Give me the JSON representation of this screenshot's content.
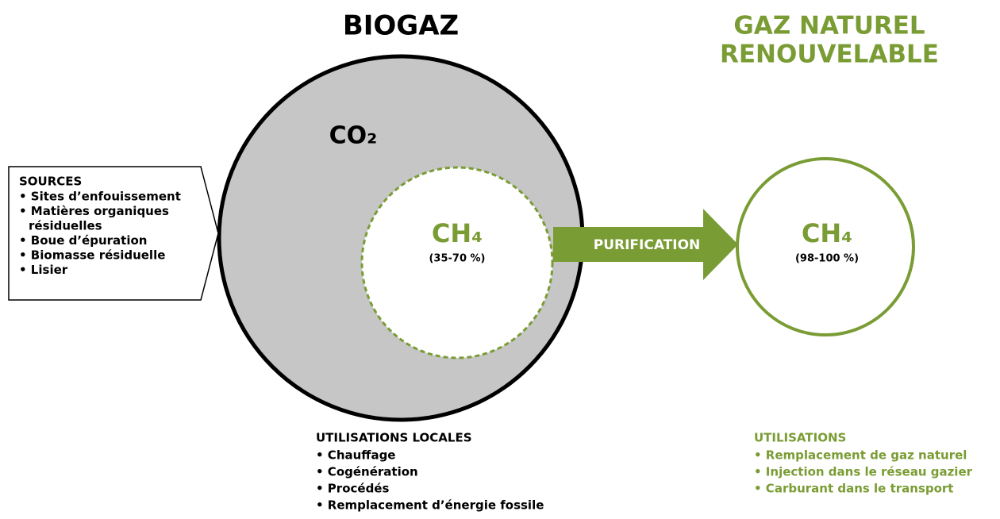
{
  "biogas": {
    "title": "BIOGAZ",
    "co2": "CO₂",
    "ch4": "CH₄",
    "ch4_range": "(35-70 %)"
  },
  "sources": {
    "title": "SOURCES",
    "items": [
      "• Sites d’enfouissement",
      "• Matières organiques",
      "résiduelles",
      "• Boue d’épuration",
      "• Biomasse résiduelle",
      "• Lisier"
    ]
  },
  "process": {
    "label": "PURIFICATION"
  },
  "rng": {
    "title_lines": [
      "GAZ NATUREL",
      "RENOUVELABLE"
    ],
    "ch4": "CH₄",
    "ch4_range": "(98-100 %)"
  },
  "local_uses": {
    "title": "UTILISATIONS LOCALES",
    "items": [
      "• Chauffage",
      "• Cogénération",
      "• Procédés",
      "• Remplacement d’énergie fossile"
    ]
  },
  "uses": {
    "title": "UTILISATIONS",
    "items": [
      "• Remplacement de gaz naturel",
      "• Injection dans le réseau gazier",
      "• Carburant dans le transport"
    ]
  }
}
